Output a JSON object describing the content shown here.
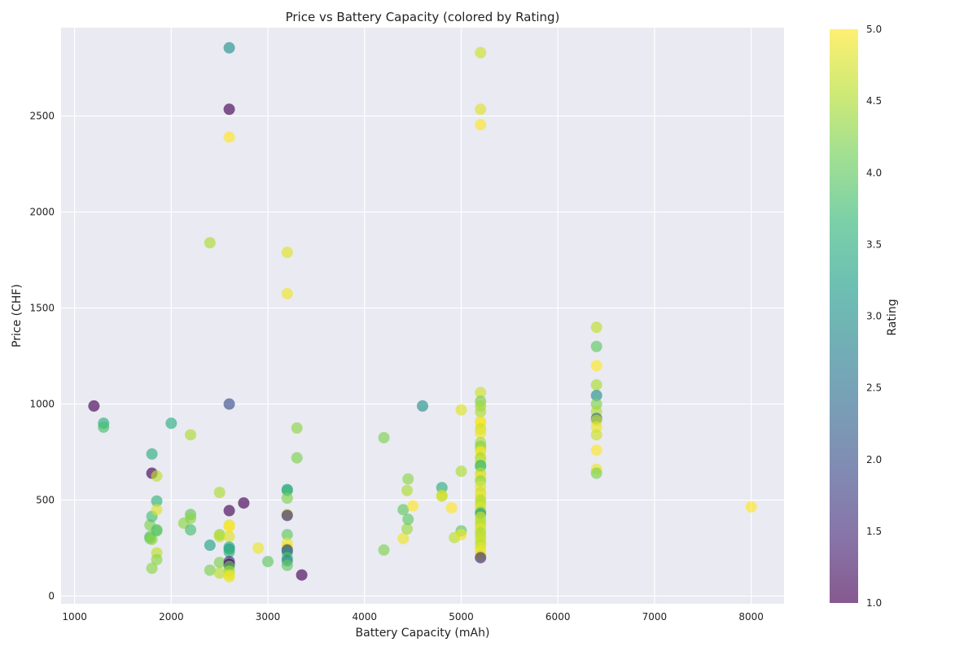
{
  "chart_data": {
    "type": "scatter",
    "title": "Price vs Battery Capacity (colored by Rating)",
    "xlabel": "Battery Capacity (mAh)",
    "ylabel": "Price (CHF)",
    "xlim": [
      860,
      8340
    ],
    "ylim": [
      -40,
      2960
    ],
    "xticks": [
      1000,
      2000,
      3000,
      4000,
      5000,
      6000,
      7000,
      8000
    ],
    "yticks": [
      0,
      500,
      1000,
      1500,
      2000,
      2500
    ],
    "grid": true,
    "colorbar": {
      "label": "Rating",
      "min": 1.0,
      "max": 5.0,
      "ticks": [
        "1.0",
        "1.5",
        "2.0",
        "2.5",
        "3.0",
        "3.5",
        "4.0",
        "4.5",
        "5.0"
      ],
      "colormap": "viridis",
      "colors": [
        "#440154",
        "#482878",
        "#3e4989",
        "#31688e",
        "#26828e",
        "#1f9e89",
        "#35b779",
        "#6ece58",
        "#b5de2b",
        "#fde725"
      ]
    },
    "points": [
      [
        1200,
        990,
        1.0
      ],
      [
        1300,
        900,
        3.5
      ],
      [
        1300,
        880,
        3.8
      ],
      [
        1780,
        370,
        4.2
      ],
      [
        1780,
        310,
        4.0
      ],
      [
        1780,
        300,
        4.0
      ],
      [
        1800,
        740,
        3.5
      ],
      [
        1800,
        640,
        1.0
      ],
      [
        1800,
        415,
        3.8
      ],
      [
        1800,
        295,
        4.3
      ],
      [
        1800,
        145,
        4.3
      ],
      [
        1850,
        625,
        4.6
      ],
      [
        1850,
        495,
        3.6
      ],
      [
        1850,
        450,
        4.8
      ],
      [
        1850,
        345,
        3.9
      ],
      [
        1850,
        340,
        4.0
      ],
      [
        1850,
        225,
        4.6
      ],
      [
        1850,
        190,
        4.3
      ],
      [
        2000,
        900,
        3.5
      ],
      [
        2130,
        380,
        4.3
      ],
      [
        2200,
        840,
        4.5
      ],
      [
        2200,
        425,
        4.0
      ],
      [
        2200,
        405,
        4.3
      ],
      [
        2200,
        345,
        3.8
      ],
      [
        2400,
        1840,
        4.5
      ],
      [
        2400,
        265,
        3.3
      ],
      [
        2400,
        135,
        4.2
      ],
      [
        2500,
        540,
        4.5
      ],
      [
        2500,
        320,
        4.3
      ],
      [
        2500,
        310,
        4.6
      ],
      [
        2500,
        175,
        4.2
      ],
      [
        2500,
        120,
        4.6
      ],
      [
        2600,
        2855,
        3.0
      ],
      [
        2600,
        2535,
        1.0
      ],
      [
        2600,
        2390,
        5.0
      ],
      [
        2600,
        1000,
        2.0
      ],
      [
        2600,
        445,
        1.0
      ],
      [
        2600,
        370,
        4.8
      ],
      [
        2600,
        360,
        5.0
      ],
      [
        2600,
        310,
        4.8
      ],
      [
        2600,
        255,
        3.5
      ],
      [
        2600,
        245,
        3.2
      ],
      [
        2600,
        230,
        3.6
      ],
      [
        2600,
        180,
        1.5
      ],
      [
        2600,
        165,
        1.0
      ],
      [
        2600,
        155,
        4.0
      ],
      [
        2600,
        130,
        4.4
      ],
      [
        2600,
        110,
        4.8
      ],
      [
        2600,
        100,
        4.9
      ],
      [
        2750,
        485,
        1.0
      ],
      [
        2900,
        250,
        4.9
      ],
      [
        3000,
        180,
        4.0
      ],
      [
        3200,
        1790,
        4.8
      ],
      [
        3200,
        1575,
        4.9
      ],
      [
        3200,
        555,
        3.2
      ],
      [
        3200,
        550,
        3.7
      ],
      [
        3200,
        510,
        4.2
      ],
      [
        3200,
        425,
        4.6
      ],
      [
        3200,
        420,
        1.5
      ],
      [
        3200,
        320,
        4.0
      ],
      [
        3200,
        275,
        4.9
      ],
      [
        3200,
        250,
        4.8
      ],
      [
        3200,
        240,
        1.5
      ],
      [
        3200,
        230,
        3.0
      ],
      [
        3200,
        200,
        3.9
      ],
      [
        3200,
        185,
        2.8
      ],
      [
        3200,
        160,
        4.0
      ],
      [
        3300,
        875,
        4.3
      ],
      [
        3300,
        720,
        4.2
      ],
      [
        3350,
        110,
        1.0
      ],
      [
        4200,
        825,
        4.2
      ],
      [
        4200,
        240,
        4.2
      ],
      [
        4400,
        450,
        4.0
      ],
      [
        4400,
        300,
        4.9
      ],
      [
        4440,
        550,
        4.5
      ],
      [
        4440,
        350,
        4.4
      ],
      [
        4450,
        610,
        4.3
      ],
      [
        4450,
        400,
        4.0
      ],
      [
        4500,
        470,
        5.0
      ],
      [
        4600,
        990,
        3.0
      ],
      [
        4800,
        565,
        3.5
      ],
      [
        4800,
        525,
        4.7
      ],
      [
        4800,
        520,
        4.7
      ],
      [
        4900,
        460,
        5.0
      ],
      [
        4930,
        305,
        4.6
      ],
      [
        5000,
        970,
        4.8
      ],
      [
        5000,
        650,
        4.5
      ],
      [
        5000,
        340,
        4.0
      ],
      [
        5000,
        320,
        4.9
      ],
      [
        5200,
        2830,
        4.7
      ],
      [
        5200,
        2535,
        4.8
      ],
      [
        5200,
        2455,
        5.0
      ],
      [
        5200,
        1060,
        4.7
      ],
      [
        5200,
        1015,
        4.2
      ],
      [
        5200,
        990,
        4.4
      ],
      [
        5200,
        960,
        4.5
      ],
      [
        5200,
        910,
        4.8
      ],
      [
        5200,
        900,
        5.0
      ],
      [
        5200,
        870,
        4.7
      ],
      [
        5200,
        850,
        4.9
      ],
      [
        5200,
        800,
        4.5
      ],
      [
        5200,
        780,
        4.2
      ],
      [
        5200,
        760,
        4.6
      ],
      [
        5200,
        750,
        5.0
      ],
      [
        5200,
        720,
        4.4
      ],
      [
        5200,
        700,
        4.7
      ],
      [
        5200,
        680,
        3.5
      ],
      [
        5200,
        675,
        4.0
      ],
      [
        5200,
        640,
        4.6
      ],
      [
        5200,
        620,
        4.9
      ],
      [
        5200,
        600,
        4.3
      ],
      [
        5200,
        570,
        4.8
      ],
      [
        5200,
        540,
        4.7
      ],
      [
        5200,
        520,
        4.9
      ],
      [
        5200,
        500,
        4.5
      ],
      [
        5200,
        480,
        4.6
      ],
      [
        5200,
        460,
        4.8
      ],
      [
        5200,
        440,
        4.4
      ],
      [
        5200,
        430,
        3.2
      ],
      [
        5200,
        410,
        4.7
      ],
      [
        5200,
        390,
        4.5
      ],
      [
        5200,
        370,
        4.6
      ],
      [
        5200,
        350,
        4.8
      ],
      [
        5200,
        330,
        4.5
      ],
      [
        5200,
        310,
        4.6
      ],
      [
        5200,
        290,
        4.7
      ],
      [
        5200,
        270,
        4.6
      ],
      [
        5200,
        250,
        4.8
      ],
      [
        5200,
        230,
        4.9
      ],
      [
        5200,
        210,
        4.7
      ],
      [
        5200,
        200,
        1.5
      ],
      [
        6400,
        1400,
        4.6
      ],
      [
        6400,
        1300,
        4.0
      ],
      [
        6400,
        1200,
        5.0
      ],
      [
        6400,
        1100,
        4.5
      ],
      [
        6400,
        1045,
        3.0
      ],
      [
        6400,
        1000,
        4.2
      ],
      [
        6400,
        960,
        4.5
      ],
      [
        6400,
        925,
        2.3
      ],
      [
        6400,
        915,
        4.6
      ],
      [
        6400,
        880,
        4.9
      ],
      [
        6400,
        840,
        4.7
      ],
      [
        6400,
        760,
        5.0
      ],
      [
        6400,
        660,
        4.9
      ],
      [
        6400,
        640,
        4.2
      ],
      [
        8000,
        465,
        5.0
      ]
    ]
  }
}
